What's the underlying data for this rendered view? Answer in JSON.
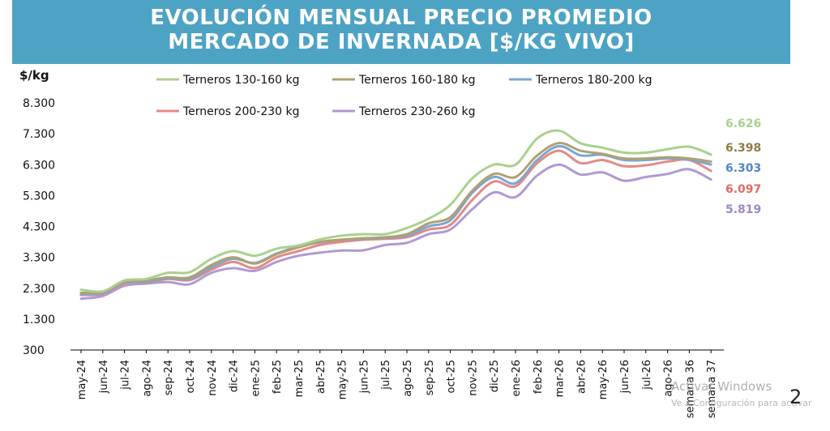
{
  "title_line1": "EVOLUCIÓN MENSUAL PRECIO PROMEDIO",
  "title_line2": "MERCADO DE INVERNADA [$/KG VIVO]",
  "watermark_line1": "Activar Windows",
  "watermark_line2": "Ve a Configuración para activar",
  "page_number": "2",
  "chart_data": {
    "type": "line",
    "ylabel": "$/kg",
    "ylim": [
      300,
      8300
    ],
    "yticks": [
      "8.300",
      "7.300",
      "6.300",
      "5.300",
      "4.300",
      "3.300",
      "2.300",
      "1.300",
      "300"
    ],
    "ytick_values": [
      8300,
      7300,
      6300,
      5300,
      4300,
      3300,
      2300,
      1300,
      300
    ],
    "grid": false,
    "legend_position": "top",
    "categories": [
      "may-24",
      "jun-24",
      "jul-24",
      "ago-24",
      "sep-24",
      "oct-24",
      "nov-24",
      "dic-24",
      "ene-25",
      "feb-25",
      "mar-25",
      "abr-25",
      "may-25",
      "jun-25",
      "jul-25",
      "ago-25",
      "sep-25",
      "oct-25",
      "nov-25",
      "dic-25",
      "ene-26",
      "feb-26",
      "mar-26",
      "abr-26",
      "may-26",
      "jun-26",
      "jul-26",
      "ago-26",
      "semana 36",
      "semana 37"
    ],
    "series": [
      {
        "name": "Terneros 130-160 kg",
        "color": "#a9d18e",
        "end_label": "6.626",
        "values": [
          2250,
          2200,
          2550,
          2600,
          2800,
          2820,
          3250,
          3500,
          3350,
          3580,
          3680,
          3880,
          4000,
          4050,
          4050,
          4250,
          4550,
          5000,
          5850,
          6300,
          6300,
          7150,
          7400,
          6990,
          6850,
          6690,
          6690,
          6800,
          6880,
          6626
        ]
      },
      {
        "name": "Terneros 160-180 kg",
        "color": "#b0a072",
        "end_label": "6.398",
        "values": [
          2150,
          2180,
          2500,
          2550,
          2650,
          2650,
          3050,
          3300,
          3100,
          3400,
          3620,
          3800,
          3870,
          3920,
          3950,
          4050,
          4400,
          4600,
          5450,
          6000,
          5900,
          6600,
          7000,
          6750,
          6650,
          6500,
          6500,
          6540,
          6500,
          6398
        ]
      },
      {
        "name": "Terneros 180-200 kg",
        "color": "#7aa6d4",
        "end_label": "6.303",
        "values": [
          2100,
          2150,
          2480,
          2500,
          2620,
          2600,
          2980,
          3250,
          3120,
          3420,
          3650,
          3780,
          3870,
          3900,
          3930,
          4000,
          4300,
          4500,
          5380,
          5900,
          5700,
          6450,
          6900,
          6600,
          6620,
          6450,
          6450,
          6500,
          6460,
          6303
        ]
      },
      {
        "name": "Terneros 200-230 kg",
        "color": "#e38a86",
        "end_label": "6.097",
        "values": [
          2080,
          2120,
          2450,
          2480,
          2600,
          2560,
          2900,
          3150,
          2950,
          3300,
          3500,
          3700,
          3800,
          3870,
          3900,
          3950,
          4200,
          4350,
          5150,
          5750,
          5600,
          6350,
          6750,
          6350,
          6450,
          6250,
          6280,
          6400,
          6450,
          6097
        ]
      },
      {
        "name": "Terneros 230-260 kg",
        "color": "#b09ad1",
        "end_label": "5.819",
        "values": [
          1960,
          2050,
          2380,
          2450,
          2500,
          2430,
          2800,
          2950,
          2860,
          3150,
          3350,
          3450,
          3520,
          3530,
          3700,
          3770,
          4050,
          4200,
          4850,
          5400,
          5250,
          5950,
          6300,
          5980,
          6050,
          5780,
          5900,
          6000,
          6150,
          5819
        ]
      }
    ],
    "end_label_colors": [
      "#a9d18e",
      "#8b7e44",
      "#4f87c9",
      "#e36a64",
      "#9c87c9"
    ]
  }
}
